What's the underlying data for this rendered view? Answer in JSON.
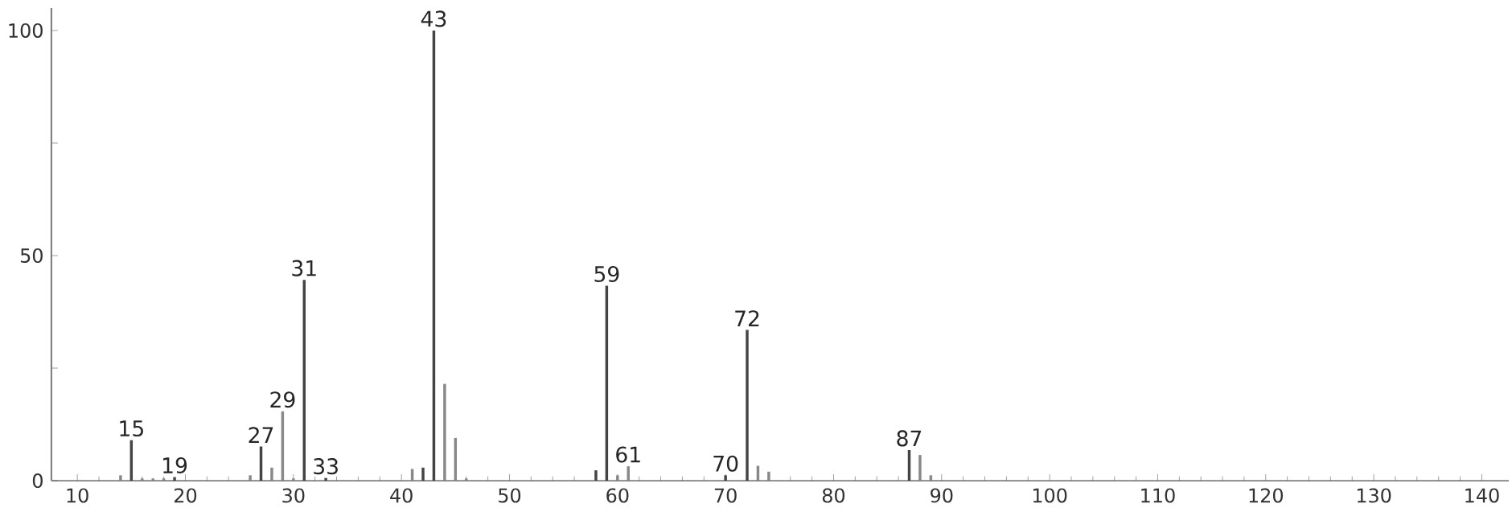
{
  "chart_data": {
    "type": "bar",
    "x": [
      14,
      15,
      16,
      17,
      18,
      19,
      26,
      27,
      28,
      29,
      30,
      31,
      32,
      33,
      41,
      42,
      43,
      44,
      45,
      46,
      57,
      58,
      59,
      60,
      61,
      70,
      71,
      72,
      73,
      74,
      75,
      86,
      87,
      88,
      89
    ],
    "values": [
      1.2,
      9,
      0.5,
      0.5,
      0.5,
      0.8,
      1.2,
      7.6,
      2.9,
      15.4,
      0.5,
      44.6,
      null,
      0.6,
      2.6,
      2.9,
      100,
      21.5,
      9.5,
      0.5,
      null,
      2.3,
      43.3,
      1.2,
      3.2,
      1.2,
      null,
      33.5,
      3.3,
      2.0,
      null,
      null,
      6.8,
      5.7,
      1.2
    ],
    "colors": [
      "#888888",
      "#444444",
      "#888888",
      "#888888",
      "#888888",
      "#444444",
      "#888888",
      "#444444",
      "#888888",
      "#888888",
      "#888888",
      "#444444",
      "#888888",
      "#444444",
      "#888888",
      "#444444",
      "#444444",
      "#888888",
      "#888888",
      "#888888",
      "#888888",
      "#444444",
      "#444444",
      "#888888",
      "#888888",
      "#444444",
      "#888888",
      "#444444",
      "#888888",
      "#888888",
      "#888888",
      "#888888",
      "#444444",
      "#888888",
      "#888888"
    ],
    "xlim": [
      7.6,
      142.5
    ],
    "xticks": [
      10,
      20,
      30,
      40,
      50,
      60,
      70,
      80,
      90,
      100,
      110,
      120,
      130,
      140
    ],
    "ylim": [
      0,
      105
    ],
    "yticks": [
      0,
      {
        "value": 25,
        "label": null
      },
      50,
      {
        "value": 75,
        "label": null
      },
      100
    ],
    "annotations": [
      {
        "text": "15",
        "x": 15,
        "y": 9
      },
      {
        "text": "19",
        "x": 19,
        "y": 0.8
      },
      {
        "text": "27",
        "x": 27,
        "y": 7.6
      },
      {
        "text": "29",
        "x": 29,
        "y": 15.4
      },
      {
        "text": "31",
        "x": 31,
        "y": 44.6
      },
      {
        "text": "33",
        "x": 33,
        "y": 0.6
      },
      {
        "text": "43",
        "x": 43,
        "y": 100
      },
      {
        "text": "59",
        "x": 59,
        "y": 43.3
      },
      {
        "text": "61",
        "x": 61,
        "y": 3.2
      },
      {
        "text": "70",
        "x": 70,
        "y": 1.2
      },
      {
        "text": "72",
        "x": 72,
        "y": 33.5
      },
      {
        "text": "87",
        "x": 87,
        "y": 6.8
      }
    ]
  }
}
